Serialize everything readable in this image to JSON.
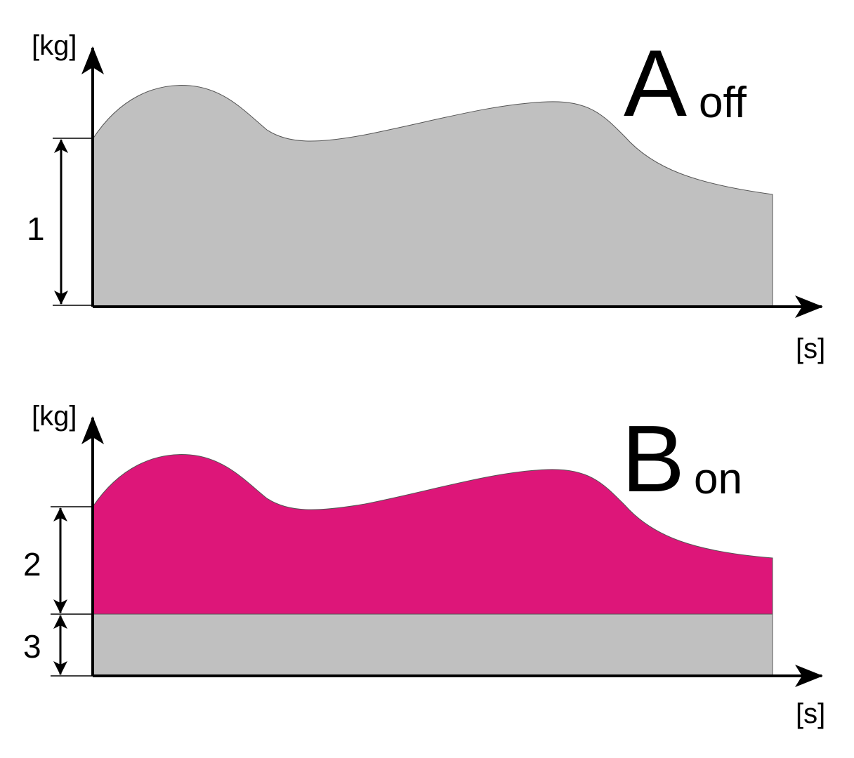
{
  "panels": [
    {
      "y_unit": "[kg]",
      "x_unit": "[s]",
      "letter": "A",
      "subscript": "off",
      "dimensions": [
        "1"
      ]
    },
    {
      "y_unit": "[kg]",
      "x_unit": "[s]",
      "letter": "B",
      "subscript": "on",
      "dimensions": [
        "2",
        "3"
      ]
    }
  ]
}
